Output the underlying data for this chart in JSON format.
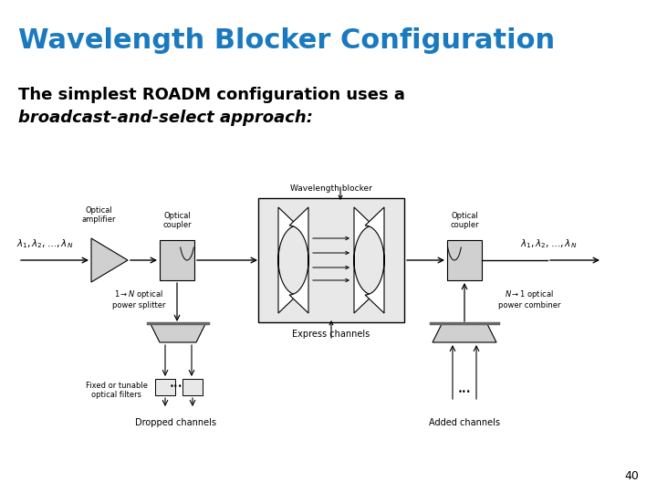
{
  "title": "Wavelength Blocker Configuration",
  "title_color": "#1a7abf",
  "title_fontsize": 22,
  "subtitle_line1": "The simplest ROADM configuration uses a",
  "subtitle_line2": "broadcast-and-select approach:",
  "subtitle_fontsize": 13,
  "page_number": "40",
  "bg_color": "#ffffff",
  "diagram_gray": "#d0d0d0",
  "diagram_light": "#e8e8e8"
}
